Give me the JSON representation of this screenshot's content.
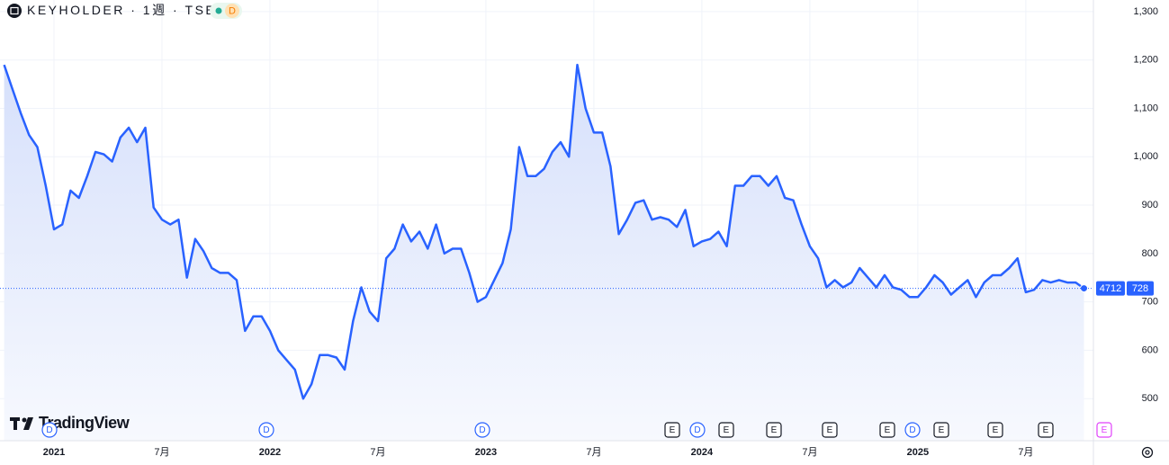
{
  "chart_data": {
    "type": "line",
    "title": "KEYHOLDER · 1週 · TSE",
    "interval_badge": "D",
    "watermark": "TradingView",
    "symbol_code": "4712",
    "last_value": 728,
    "color": "#2962ff",
    "categories": [
      null,
      null,
      null,
      null,
      null,
      null,
      "2021",
      null,
      null,
      null,
      null,
      null,
      null,
      null,
      null,
      null,
      null,
      null,
      null,
      "7月",
      null,
      null,
      null,
      null,
      null,
      null,
      null,
      null,
      null,
      null,
      null,
      null,
      "2022",
      null,
      null,
      null,
      null,
      null,
      null,
      null,
      null,
      null,
      null,
      null,
      null,
      "7月",
      null,
      null,
      null,
      null,
      null,
      null,
      null,
      null,
      null,
      null,
      null,
      null,
      "2023",
      null,
      null,
      null,
      null,
      null,
      null,
      null,
      null,
      null,
      null,
      null,
      null,
      "7月",
      null,
      null,
      null,
      null,
      null,
      null,
      null,
      null,
      null,
      null,
      null,
      null,
      "2024",
      null,
      null,
      null,
      null,
      null,
      null,
      null,
      null,
      null,
      null,
      null,
      null,
      "7月",
      null,
      null,
      null,
      null,
      null,
      null,
      null,
      null,
      null,
      null,
      null,
      null,
      "2025",
      null,
      null,
      null,
      null,
      null,
      null,
      null,
      null,
      null,
      null,
      null,
      null,
      "7月",
      null,
      null,
      null,
      null,
      null,
      null,
      null
    ],
    "values": [
      1190,
      1140,
      1090,
      1045,
      1020,
      940,
      850,
      860,
      930,
      915,
      960,
      1010,
      1005,
      990,
      1040,
      1060,
      1030,
      1060,
      895,
      870,
      860,
      870,
      750,
      830,
      805,
      770,
      760,
      760,
      745,
      640,
      670,
      670,
      640,
      600,
      580,
      560,
      500,
      530,
      590,
      590,
      585,
      560,
      660,
      730,
      680,
      660,
      790,
      810,
      860,
      825,
      845,
      810,
      860,
      800,
      810,
      810,
      760,
      700,
      710,
      745,
      780,
      850,
      1020,
      960,
      960,
      975,
      1010,
      1030,
      1000,
      1190,
      1100,
      1050,
      1050,
      980,
      840,
      870,
      905,
      910,
      870,
      875,
      870,
      855,
      890,
      815,
      825,
      830,
      845,
      815,
      940,
      940,
      960,
      960,
      940,
      960,
      915,
      910,
      860,
      815,
      790,
      730,
      745,
      730,
      740,
      770,
      750,
      730,
      755,
      730,
      725,
      710,
      710,
      730,
      755,
      740,
      715,
      730,
      745,
      710,
      740,
      755,
      755,
      770,
      790,
      720,
      725,
      745,
      740,
      745,
      740,
      740,
      728
    ],
    "ylim": [
      413,
      1324
    ],
    "yticks": [
      500,
      600,
      700,
      800,
      900,
      {
        "value": 1000,
        "label": "1,000"
      },
      {
        "value": 1100,
        "label": "1,100"
      },
      {
        "value": 1200,
        "label": "1,200"
      },
      {
        "value": 1300,
        "label": "1,300"
      }
    ],
    "grid": true,
    "events": [
      "D",
      "D",
      "D",
      "E",
      "D",
      "E",
      "E",
      "E",
      "E",
      "D",
      "E",
      "E",
      "E",
      "E"
    ]
  }
}
